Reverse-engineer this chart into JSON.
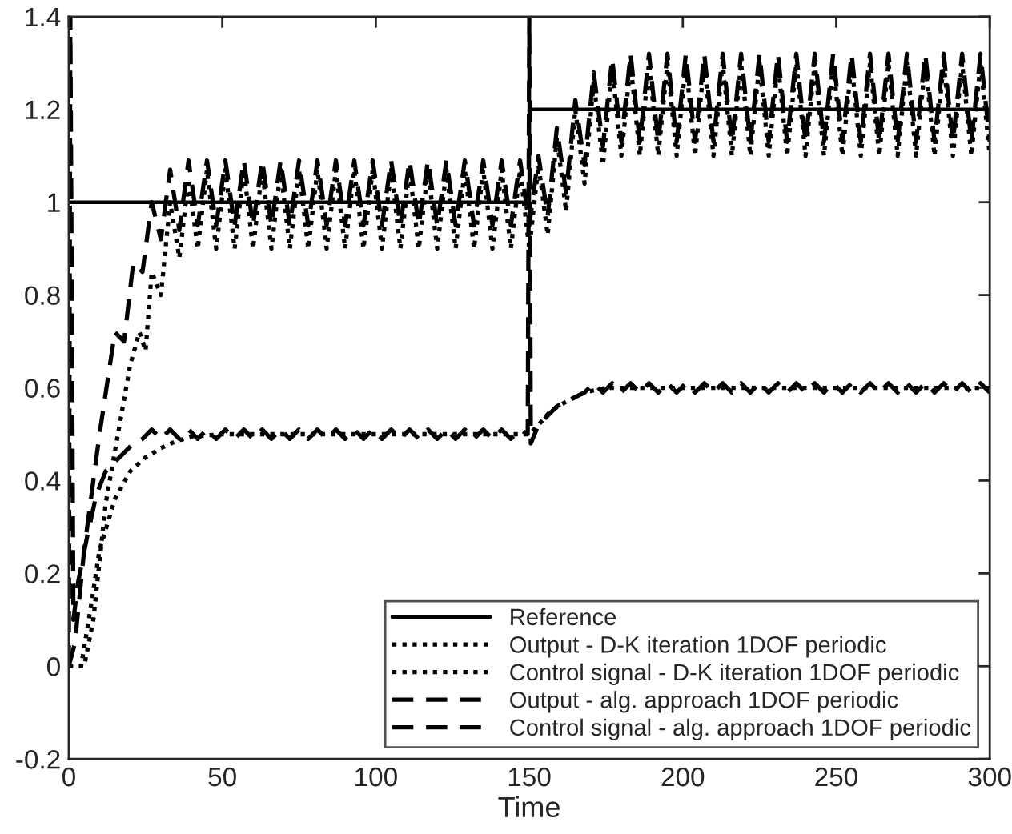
{
  "chart_data": {
    "type": "line",
    "xlabel": "Time",
    "xlim": [
      0,
      300
    ],
    "ylim": [
      -0.2,
      1.4
    ],
    "xticks": [
      0,
      50,
      100,
      150,
      200,
      250,
      300
    ],
    "yticks": [
      -0.2,
      0,
      0.2,
      0.4,
      0.6,
      0.8,
      1,
      1.2,
      1.4
    ],
    "grid": false,
    "legend": "bottom right",
    "series": [
      {
        "name": "Reference",
        "color": "#000000",
        "line_style": "solid",
        "x": [
          0,
          150,
          150,
          300
        ],
        "values": [
          1,
          1,
          1.2,
          1.2
        ]
      },
      {
        "name": "Output - D-K iteration 1DOF periodic",
        "color": "#000000",
        "line_style": "dotted",
        "x": [
          0,
          5,
          8,
          12,
          16,
          20,
          23,
          25,
          27,
          30,
          33,
          36,
          39,
          42,
          45,
          48,
          51,
          54,
          57,
          60,
          63,
          66,
          69,
          72,
          75,
          78,
          81,
          84,
          87,
          90,
          93,
          96,
          99,
          102,
          105,
          108,
          111,
          114,
          117,
          120,
          123,
          126,
          129,
          132,
          135,
          138,
          141,
          144,
          147,
          150,
          153,
          156,
          159,
          162,
          165,
          168,
          171,
          174,
          177,
          180,
          183,
          186,
          189,
          192,
          195,
          198,
          201,
          204,
          207,
          210,
          213,
          216,
          219,
          222,
          225,
          228,
          231,
          234,
          237,
          240,
          243,
          246,
          249,
          252,
          255,
          258,
          261,
          264,
          267,
          270,
          273,
          276,
          279,
          282,
          285,
          288,
          291,
          294,
          297,
          300
        ],
        "values": [
          0,
          0,
          0.1,
          0.35,
          0.5,
          0.65,
          0.72,
          0.68,
          0.85,
          0.8,
          1.0,
          0.88,
          1.05,
          0.9,
          1.07,
          0.9,
          1.07,
          0.9,
          1.07,
          0.9,
          1.07,
          0.9,
          1.07,
          0.9,
          1.07,
          0.9,
          1.07,
          0.9,
          1.07,
          0.9,
          1.07,
          0.9,
          1.07,
          0.9,
          1.07,
          0.9,
          1.07,
          0.9,
          1.07,
          0.9,
          1.07,
          0.9,
          1.07,
          0.9,
          1.07,
          0.9,
          1.07,
          0.9,
          1.07,
          0.9,
          1.08,
          0.93,
          1.14,
          0.98,
          1.2,
          1.04,
          1.26,
          1.08,
          1.29,
          1.1,
          1.3,
          1.1,
          1.3,
          1.1,
          1.3,
          1.1,
          1.3,
          1.1,
          1.3,
          1.1,
          1.3,
          1.1,
          1.3,
          1.1,
          1.3,
          1.1,
          1.3,
          1.1,
          1.3,
          1.1,
          1.3,
          1.1,
          1.3,
          1.1,
          1.3,
          1.1,
          1.3,
          1.1,
          1.3,
          1.1,
          1.3,
          1.1,
          1.3,
          1.1,
          1.3,
          1.1,
          1.3,
          1.1,
          1.3,
          1.1
        ]
      },
      {
        "name": "Control signal - D-K iteration 1DOF periodic",
        "color": "#000000",
        "line_style": "dotted",
        "x": [
          0,
          4,
          7,
          10,
          15,
          20,
          25,
          30,
          35,
          40,
          50,
          150,
          153,
          157,
          162,
          168,
          175,
          300
        ],
        "values": [
          0,
          0,
          0.12,
          0.25,
          0.36,
          0.42,
          0.45,
          0.47,
          0.485,
          0.495,
          0.5,
          0.5,
          0.52,
          0.55,
          0.57,
          0.59,
          0.6,
          0.6
        ]
      },
      {
        "name": "Output - alg. approach 1DOF periodic",
        "color": "#000000",
        "line_style": "dashed",
        "x": [
          0,
          2,
          5,
          10,
          15,
          18,
          21,
          24,
          27,
          30,
          33,
          36,
          39,
          42,
          45,
          48,
          51,
          54,
          57,
          60,
          63,
          66,
          69,
          72,
          75,
          78,
          81,
          84,
          87,
          90,
          93,
          96,
          99,
          102,
          105,
          108,
          111,
          114,
          117,
          120,
          123,
          126,
          129,
          132,
          135,
          138,
          141,
          144,
          147,
          150,
          153,
          156,
          159,
          162,
          165,
          168,
          171,
          174,
          177,
          180,
          183,
          186,
          189,
          192,
          195,
          198,
          201,
          204,
          207,
          210,
          213,
          216,
          219,
          222,
          225,
          228,
          231,
          234,
          237,
          240,
          243,
          246,
          249,
          252,
          255,
          258,
          261,
          264,
          267,
          270,
          273,
          276,
          279,
          282,
          285,
          288,
          291,
          294,
          297,
          300
        ],
        "values": [
          0,
          0.05,
          0.25,
          0.5,
          0.72,
          0.7,
          0.87,
          0.85,
          1.0,
          0.92,
          1.07,
          0.94,
          1.09,
          0.95,
          1.09,
          0.95,
          1.09,
          0.95,
          1.09,
          0.95,
          1.09,
          0.95,
          1.09,
          0.95,
          1.09,
          0.95,
          1.09,
          0.95,
          1.09,
          0.95,
          1.09,
          0.95,
          1.09,
          0.95,
          1.09,
          0.95,
          1.09,
          0.95,
          1.09,
          0.95,
          1.09,
          0.95,
          1.09,
          0.95,
          1.09,
          0.95,
          1.09,
          0.95,
          1.09,
          0.95,
          1.1,
          0.97,
          1.16,
          1.02,
          1.22,
          1.08,
          1.28,
          1.12,
          1.31,
          1.13,
          1.32,
          1.13,
          1.32,
          1.13,
          1.32,
          1.13,
          1.32,
          1.13,
          1.32,
          1.13,
          1.32,
          1.13,
          1.32,
          1.13,
          1.32,
          1.13,
          1.32,
          1.13,
          1.32,
          1.13,
          1.32,
          1.13,
          1.32,
          1.13,
          1.32,
          1.13,
          1.32,
          1.13,
          1.32,
          1.13,
          1.32,
          1.13,
          1.32,
          1.13,
          1.32,
          1.13,
          1.32,
          1.13,
          1.32,
          1.13
        ]
      },
      {
        "name": "Control signal - alg. approach 1DOF periodic",
        "color": "#000000",
        "line_style": "dashed",
        "x": [
          0,
          0.5,
          1.5,
          3,
          6,
          9,
          12,
          15,
          18,
          21,
          24,
          27,
          30,
          33,
          36,
          39,
          42,
          45,
          48,
          51,
          54,
          57,
          60,
          63,
          66,
          69,
          72,
          75,
          78,
          81,
          84,
          87,
          90,
          93,
          96,
          99,
          102,
          105,
          108,
          111,
          114,
          117,
          120,
          123,
          126,
          129,
          132,
          135,
          138,
          141,
          144,
          147,
          149.5,
          150,
          150.5,
          153,
          156,
          159,
          162,
          165,
          168,
          171,
          174,
          177,
          180,
          183,
          186,
          189,
          192,
          195,
          198,
          201,
          204,
          207,
          210,
          213,
          216,
          219,
          222,
          225,
          228,
          231,
          234,
          237,
          240,
          243,
          246,
          249,
          252,
          255,
          258,
          261,
          264,
          267,
          270,
          273,
          276,
          279,
          282,
          285,
          288,
          291,
          294,
          297,
          300
        ],
        "values": [
          0,
          1.4,
          0.1,
          0.18,
          0.28,
          0.37,
          0.42,
          0.44,
          0.46,
          0.48,
          0.49,
          0.51,
          0.49,
          0.51,
          0.49,
          0.51,
          0.49,
          0.51,
          0.49,
          0.51,
          0.49,
          0.51,
          0.49,
          0.51,
          0.49,
          0.51,
          0.49,
          0.51,
          0.49,
          0.51,
          0.49,
          0.51,
          0.49,
          0.51,
          0.49,
          0.51,
          0.49,
          0.51,
          0.49,
          0.51,
          0.49,
          0.51,
          0.49,
          0.51,
          0.49,
          0.51,
          0.49,
          0.51,
          0.49,
          0.51,
          0.49,
          0.51,
          0.5,
          1.4,
          0.48,
          0.52,
          0.54,
          0.56,
          0.57,
          0.58,
          0.59,
          0.61,
          0.59,
          0.61,
          0.59,
          0.61,
          0.59,
          0.61,
          0.59,
          0.61,
          0.59,
          0.61,
          0.59,
          0.61,
          0.59,
          0.61,
          0.59,
          0.61,
          0.59,
          0.61,
          0.59,
          0.61,
          0.59,
          0.61,
          0.59,
          0.61,
          0.59,
          0.61,
          0.59,
          0.61,
          0.59,
          0.61,
          0.59,
          0.61,
          0.59,
          0.61,
          0.59,
          0.61,
          0.59,
          0.61,
          0.59,
          0.61,
          0.59,
          0.61,
          0.59
        ]
      }
    ]
  }
}
